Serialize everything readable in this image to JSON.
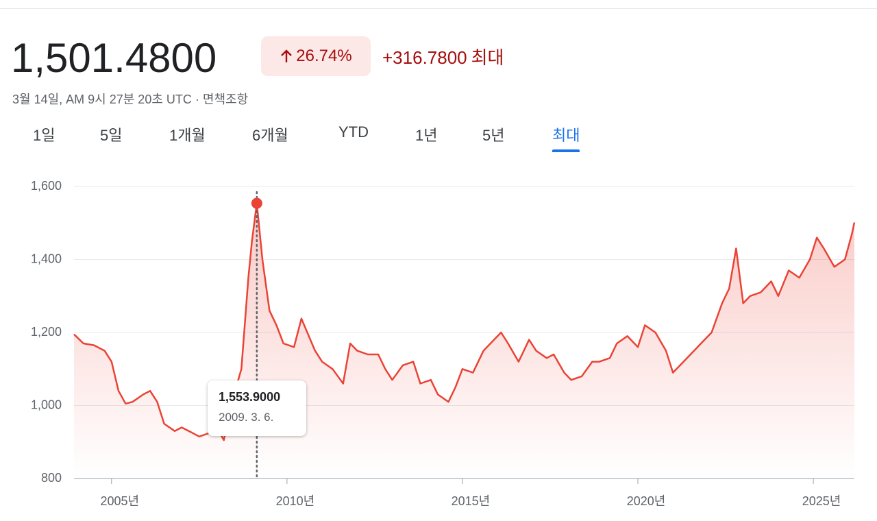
{
  "header": {
    "price": "1,501.4800",
    "change_percent": "26.74%",
    "change_abs": "+316.7800",
    "period": "최대",
    "timestamp": "3월 14일, AM 9시 27분 20초 UTC · ",
    "disclaimer": "면책조항"
  },
  "tabs": {
    "items": [
      "1일",
      "5일",
      "1개월",
      "6개월",
      "YTD",
      "1년",
      "5년",
      "최대"
    ],
    "selected": 7
  },
  "chart_data": {
    "type": "line",
    "color": "#ea4335",
    "x": [
      2003.93,
      2004.2,
      2004.5,
      2004.8,
      2005.0,
      2005.2,
      2005.4,
      2005.6,
      2005.9,
      2006.1,
      2006.3,
      2006.5,
      2006.8,
      2007.0,
      2007.3,
      2007.5,
      2007.8,
      2008.0,
      2008.2,
      2008.4,
      2008.7,
      2008.9,
      2009.0,
      2009.14,
      2009.3,
      2009.5,
      2009.7,
      2009.9,
      2010.2,
      2010.41,
      2010.8,
      2011.0,
      2011.3,
      2011.6,
      2011.8,
      2012.0,
      2012.3,
      2012.6,
      2012.8,
      2013.0,
      2013.3,
      2013.6,
      2013.8,
      2014.1,
      2014.3,
      2014.6,
      2014.8,
      2015.0,
      2015.3,
      2015.6,
      2015.9,
      2016.1,
      2016.3,
      2016.6,
      2016.9,
      2017.1,
      2017.4,
      2017.6,
      2017.9,
      2018.1,
      2018.4,
      2018.7,
      2018.9,
      2019.2,
      2019.4,
      2019.7,
      2020.0,
      2020.2,
      2020.5,
      2020.8,
      2021.0,
      2021.3,
      2021.6,
      2021.9,
      2022.1,
      2022.4,
      2022.6,
      2022.8,
      2023.0,
      2023.2,
      2023.5,
      2023.8,
      2024.0,
      2024.3,
      2024.6,
      2024.9,
      2025.1,
      2025.3,
      2025.6,
      2025.9,
      2026.1,
      2026.17
    ],
    "values": [
      1195,
      1170,
      1165,
      1150,
      1120,
      1040,
      1005,
      1010,
      1030,
      1040,
      1010,
      950,
      930,
      940,
      925,
      915,
      925,
      940,
      905,
      1000,
      1100,
      1350,
      1450,
      1553.9,
      1400,
      1260,
      1220,
      1170,
      1160,
      1238,
      1150,
      1120,
      1100,
      1060,
      1170,
      1150,
      1140,
      1140,
      1100,
      1070,
      1110,
      1120,
      1060,
      1070,
      1030,
      1010,
      1050,
      1100,
      1090,
      1150,
      1180,
      1200,
      1170,
      1120,
      1180,
      1150,
      1130,
      1140,
      1090,
      1070,
      1080,
      1120,
      1120,
      1130,
      1170,
      1190,
      1160,
      1220,
      1200,
      1150,
      1090,
      1120,
      1150,
      1180,
      1200,
      1280,
      1320,
      1430,
      1280,
      1300,
      1310,
      1340,
      1300,
      1370,
      1350,
      1400,
      1460,
      1430,
      1380,
      1400,
      1470,
      1501.48
    ],
    "xlim": [
      2003.93,
      2026.17
    ],
    "xticks": [
      {
        "value": 2005,
        "label": "2005년"
      },
      {
        "value": 2010,
        "label": "2010년"
      },
      {
        "value": 2015,
        "label": "2015년"
      },
      {
        "value": 2020,
        "label": "2020년"
      },
      {
        "value": 2025,
        "label": "2025년"
      }
    ],
    "ylim": [
      800,
      1600
    ],
    "yticks": [
      800,
      {
        "value": 1000,
        "label": "1,000"
      },
      {
        "value": 1200,
        "label": "1,200"
      },
      {
        "value": 1400,
        "label": "1,400"
      },
      {
        "value": 1600,
        "label": "1,600"
      }
    ],
    "grid": true,
    "highlight": {
      "x": 2009.14,
      "value": 1553.9,
      "label": "1,553.9000",
      "date": "2009. 3. 6."
    }
  }
}
